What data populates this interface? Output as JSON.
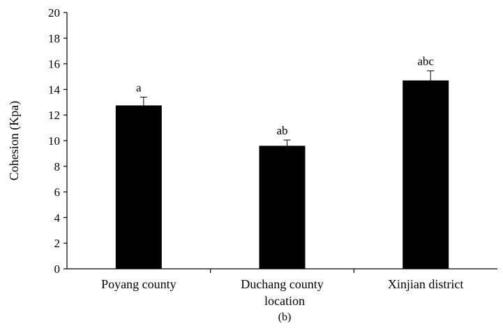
{
  "chart_data": {
    "type": "bar",
    "categories": [
      "Poyang county",
      "Duchang county",
      "Xinjian district"
    ],
    "values": [
      12.75,
      9.6,
      14.7
    ],
    "errors": [
      0.65,
      0.45,
      0.75
    ],
    "significance_labels": [
      "a",
      "ab",
      "abc"
    ],
    "title": "",
    "xlabel": "location",
    "ylabel": "Cohesion (Kpa)",
    "panel_label": "(b)",
    "ylim": [
      0,
      20
    ],
    "yticks": [
      0,
      2,
      4,
      6,
      8,
      10,
      12,
      14,
      16,
      18,
      20
    ],
    "grid": false,
    "bar_color": "#000000"
  }
}
